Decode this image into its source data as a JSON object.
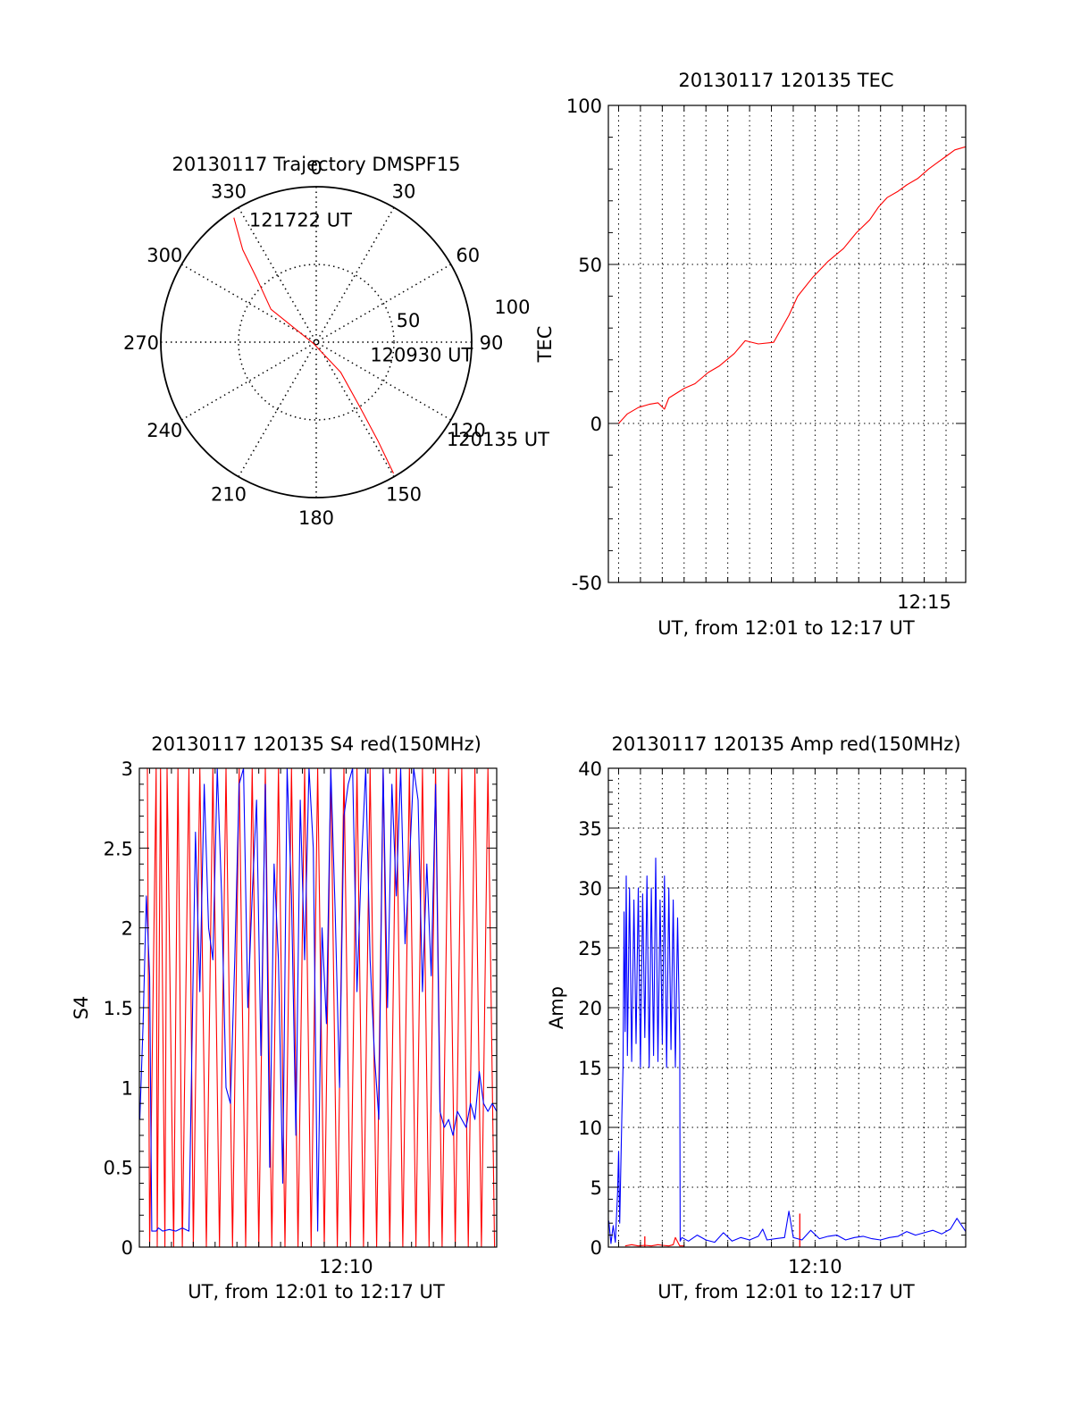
{
  "chart_data": [
    {
      "type": "polar",
      "title": "20130117 Trajectory DMSPF15",
      "angle_labels": [
        "0",
        "30",
        "60",
        "90",
        "120",
        "150",
        "180",
        "210",
        "240",
        "270",
        "300",
        "330"
      ],
      "radial_labels": [
        "50",
        "100"
      ],
      "radial_max": 100,
      "angle_direction": "clockwise from top",
      "series": [
        {
          "color": "#ff0000",
          "points": [
            {
              "az": 326.5,
              "r": 96
            },
            {
              "az": 321.5,
              "r": 76
            },
            {
              "az": 317,
              "r": 56
            },
            {
              "az": 306,
              "r": 36
            },
            {
              "az": 247,
              "r": 2
            },
            {
              "az": 141,
              "r": 25
            },
            {
              "az": 146,
              "r": 50
            },
            {
              "az": 148,
              "r": 75
            },
            {
              "az": 149.5,
              "r": 98
            }
          ]
        }
      ],
      "annotations": [
        {
          "text": "121722 UT",
          "az": 334,
          "r": 88
        },
        {
          "text": "120930 UT",
          "az": 101,
          "r": 40
        },
        {
          "text": "120135 UT",
          "az": 125,
          "r": 108
        }
      ]
    },
    {
      "type": "line",
      "title": "20130117 120135 TEC",
      "xlabel": "UT, from 12:01 to 12:17 UT",
      "ylabel": "TEC",
      "xlim_minutes": [
        0.53,
        16.9
      ],
      "ylim": [
        -50,
        100
      ],
      "yticks": [
        -50,
        0,
        50,
        100
      ],
      "xtick_labels": [
        {
          "minute": 15,
          "label": "12:15"
        }
      ],
      "grid": true,
      "series": [
        {
          "color": "#ff0000",
          "t": [
            1.0,
            1.4,
            1.9,
            2.4,
            2.8,
            3.1,
            3.3,
            4.0,
            4.5,
            5.1,
            5.6,
            6.3,
            6.8,
            7.4,
            8.1,
            8.8,
            9.2,
            9.9,
            10.6,
            11.3,
            11.9,
            12.5,
            12.9,
            13.3,
            13.8,
            14.2,
            14.7,
            15.2,
            15.6,
            16.0,
            16.4,
            16.9
          ],
          "values": [
            0,
            3,
            5,
            6,
            6.5,
            4.5,
            8,
            11,
            12.5,
            16,
            18,
            22,
            26,
            25,
            25.5,
            34,
            40,
            46,
            51,
            55,
            60,
            64,
            68,
            71,
            73,
            75,
            77,
            80,
            82,
            84,
            86,
            87
          ]
        }
      ]
    },
    {
      "type": "line",
      "title": "20130117 120135 S4 red(150MHz)",
      "xlabel": "UT, from 12:01 to 12:17 UT",
      "ylabel": "S4",
      "xlim_minutes": [
        0.53,
        16.9
      ],
      "ylim": [
        0,
        3
      ],
      "yticks": [
        0,
        0.5,
        1,
        1.5,
        2,
        2.5,
        3
      ],
      "xtick_labels": [
        {
          "minute": 10,
          "label": "12:10"
        }
      ],
      "grid": false,
      "series": [
        {
          "color": "#ff0000",
          "style": "dense vertical spikes spanning the full range",
          "t": [
            0.9,
            1.0,
            1.3,
            1.35,
            1.5,
            1.7,
            1.8,
            2.1,
            2.3,
            2.5,
            2.8,
            3.0,
            3.3,
            3.6,
            3.9,
            4.2,
            4.5,
            4.8,
            5.1,
            5.4,
            5.7,
            6.0,
            6.3,
            6.6,
            6.9,
            7.2,
            7.5,
            7.8,
            8.1,
            8.4,
            8.7,
            9.0,
            9.3,
            9.6,
            9.9,
            10.2,
            10.5,
            10.8,
            11.1,
            11.4,
            11.7,
            12.0,
            12.3,
            12.6,
            12.9,
            13.2,
            13.5,
            13.8,
            14.1,
            14.4,
            14.7,
            15.0,
            15.3,
            15.6,
            15.9,
            16.2,
            16.5,
            16.8
          ],
          "values": [
            3,
            0,
            3,
            0,
            3,
            0,
            3,
            0,
            3,
            0,
            3,
            0,
            3,
            0,
            3,
            0,
            3,
            0,
            3,
            0,
            3,
            0,
            3,
            0,
            3,
            0,
            3,
            0,
            3,
            0,
            3,
            0,
            3,
            0,
            3,
            0,
            3,
            0,
            3,
            0,
            3,
            0,
            3,
            0,
            3,
            0,
            3,
            0,
            3,
            0,
            3,
            0,
            3,
            0,
            3,
            0,
            3,
            0
          ]
        },
        {
          "color": "#0000ff",
          "t": [
            0.55,
            0.7,
            0.85,
            1.0,
            1.1,
            1.3,
            1.4,
            1.6,
            1.9,
            2.2,
            2.5,
            2.8,
            3.1,
            3.3,
            3.5,
            3.7,
            3.9,
            4.1,
            4.3,
            4.5,
            4.7,
            4.9,
            5.1,
            5.3,
            5.5,
            5.7,
            5.9,
            6.1,
            6.3,
            6.5,
            6.7,
            6.9,
            7.1,
            7.3,
            7.5,
            7.7,
            7.9,
            8.1,
            8.3,
            8.5,
            8.7,
            8.9,
            9.1,
            9.3,
            9.5,
            9.7,
            9.9,
            10.1,
            10.3,
            10.5,
            10.7,
            10.9,
            11.1,
            11.3,
            11.5,
            11.7,
            11.9,
            12.1,
            12.3,
            12.5,
            12.7,
            12.9,
            13.1,
            13.3,
            13.5,
            13.7,
            13.9,
            14.1,
            14.3,
            14.5,
            14.7,
            14.9,
            15.1,
            15.3,
            15.5,
            15.7,
            15.9,
            16.1,
            16.3,
            16.5,
            16.7,
            16.9
          ],
          "values": [
            0.8,
            1.4,
            2.2,
            1.7,
            0.1,
            0.1,
            0.12,
            0.1,
            0.11,
            0.1,
            0.12,
            0.1,
            2.6,
            1.6,
            2.9,
            2.0,
            1.8,
            3.0,
            2.2,
            1.0,
            0.9,
            1.8,
            2.9,
            3.0,
            1.5,
            2.2,
            2.8,
            1.2,
            2.9,
            0.5,
            2.4,
            1.8,
            0.4,
            3.0,
            2.2,
            0.7,
            2.8,
            1.8,
            3.0,
            2.5,
            0.1,
            2.0,
            1.4,
            3.0,
            2.1,
            1.0,
            2.7,
            2.9,
            3.0,
            1.6,
            2.4,
            3.0,
            1.8,
            1.2,
            0.8,
            3.0,
            1.5,
            2.9,
            2.2,
            3.0,
            1.9,
            2.4,
            3.0,
            2.8,
            1.6,
            2.4,
            1.7,
            2.9,
            0.85,
            0.75,
            0.8,
            0.7,
            0.85,
            0.8,
            0.75,
            0.9,
            0.8,
            1.1,
            0.9,
            0.85,
            0.9,
            0.85
          ]
        }
      ]
    },
    {
      "type": "line",
      "title": "20130117 120135 Amp red(150MHz)",
      "xlabel": "UT, from 12:01 to 12:17 UT",
      "ylabel": "Amp",
      "xlim_minutes": [
        0.53,
        16.9
      ],
      "ylim": [
        0,
        40
      ],
      "yticks": [
        0,
        5,
        10,
        15,
        20,
        25,
        30,
        35,
        40
      ],
      "xtick_labels": [
        {
          "minute": 10,
          "label": "12:10"
        }
      ],
      "grid": true,
      "series": [
        {
          "color": "#ff0000",
          "t": [
            1.3,
            1.6,
            1.9,
            2.2,
            2.5,
            2.8,
            3.0,
            3.3,
            3.5,
            3.6,
            3.8,
            4.0
          ],
          "values": [
            0.1,
            0.2,
            0.1,
            0.15,
            0.1,
            0.2,
            0.15,
            0.1,
            0.2,
            0.8,
            0.1,
            0.1
          ],
          "extra_spikes": [
            {
              "t": 2.2,
              "value": 0.9
            },
            {
              "t": 9.3,
              "value": 2.8
            }
          ]
        },
        {
          "color": "#0000ff",
          "t": [
            0.55,
            0.65,
            0.75,
            0.85,
            0.95,
            1.0,
            1.05,
            1.1,
            1.15,
            1.2,
            1.25,
            1.3,
            1.35,
            1.4,
            1.5,
            1.6,
            1.7,
            1.8,
            1.9,
            2.0,
            2.1,
            2.2,
            2.3,
            2.4,
            2.5,
            2.6,
            2.7,
            2.8,
            2.9,
            3.0,
            3.1,
            3.2,
            3.3,
            3.4,
            3.5,
            3.6,
            3.7,
            3.8,
            3.82,
            3.9,
            4.2,
            4.6,
            5.0,
            5.4,
            5.8,
            6.2,
            6.6,
            7.0,
            7.4,
            7.6,
            7.8,
            8.2,
            8.6,
            8.8,
            9.0,
            9.4,
            9.8,
            10.2,
            10.6,
            11.0,
            11.4,
            11.8,
            12.2,
            12.6,
            13.0,
            13.4,
            13.8,
            14.2,
            14.6,
            15.0,
            15.4,
            15.8,
            16.2,
            16.5,
            16.9
          ],
          "values": [
            2.2,
            0.3,
            1.8,
            0.4,
            4.5,
            8.0,
            2.0,
            6.5,
            11.0,
            15.0,
            28.0,
            18.0,
            31.0,
            16.0,
            30.0,
            15.5,
            29.0,
            17.0,
            30.0,
            15.0,
            29.5,
            17.5,
            31.0,
            15.0,
            30.0,
            16.0,
            32.5,
            15.5,
            29.0,
            17.0,
            31.0,
            15.0,
            30.0,
            16.5,
            29.0,
            15.0,
            27.5,
            17.0,
            0.5,
            0.8,
            0.5,
            1.0,
            0.6,
            0.4,
            1.2,
            0.5,
            0.8,
            0.6,
            0.9,
            1.5,
            0.6,
            0.7,
            0.8,
            3.0,
            0.8,
            0.6,
            1.4,
            0.7,
            0.9,
            1.0,
            0.6,
            0.8,
            0.9,
            0.7,
            0.6,
            0.8,
            0.9,
            1.3,
            1.0,
            1.2,
            1.4,
            1.1,
            1.5,
            2.4,
            1.3
          ]
        }
      ]
    }
  ]
}
